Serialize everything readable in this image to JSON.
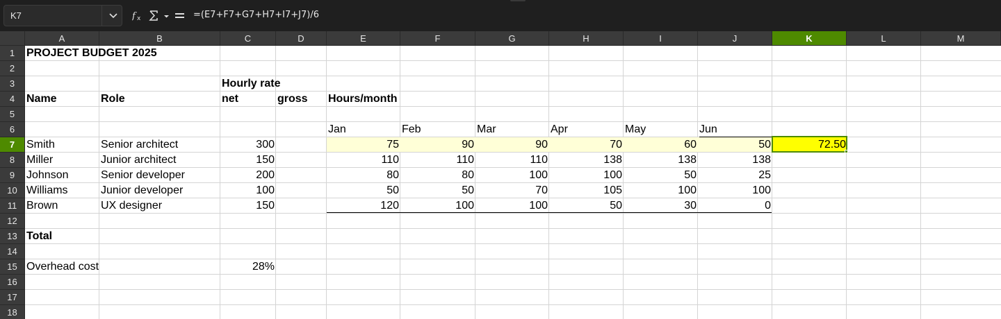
{
  "name_box": {
    "value": "K7"
  },
  "formula": {
    "value": "=(E7+F7+G7+H7+I7+J7)/6"
  },
  "columns": [
    {
      "letter": "A",
      "active": false
    },
    {
      "letter": "B",
      "active": false
    },
    {
      "letter": "C",
      "active": false
    },
    {
      "letter": "D",
      "active": false
    },
    {
      "letter": "E",
      "active": false
    },
    {
      "letter": "F",
      "active": false
    },
    {
      "letter": "G",
      "active": false
    },
    {
      "letter": "H",
      "active": false
    },
    {
      "letter": "I",
      "active": false
    },
    {
      "letter": "J",
      "active": false
    },
    {
      "letter": "K",
      "active": true
    },
    {
      "letter": "L",
      "active": false
    },
    {
      "letter": "M",
      "active": false
    }
  ],
  "rows": [
    "1",
    "2",
    "3",
    "4",
    "5",
    "6",
    "7",
    "8",
    "9",
    "10",
    "11",
    "12",
    "13",
    "14",
    "15",
    "16",
    "17",
    "18"
  ],
  "active_row": "7",
  "sheet": {
    "title": "PROJECT BUDGET 2025",
    "hourly_rate_label": "Hourly rate",
    "headers": {
      "name": "Name",
      "role": "Role",
      "net": "net",
      "gross": "gross",
      "hours": "Hours/month"
    },
    "months": [
      "Jan",
      "Feb",
      "Mar",
      "Apr",
      "May",
      "Jun"
    ],
    "people": [
      {
        "name": "Smith",
        "role": "Senior architect",
        "net": "300",
        "hours": [
          "75",
          "90",
          "90",
          "70",
          "60",
          "50"
        ],
        "avg": "72.50"
      },
      {
        "name": "Miller",
        "role": "Junior architect",
        "net": "150",
        "hours": [
          "110",
          "110",
          "110",
          "138",
          "138",
          "138"
        ]
      },
      {
        "name": "Johnson",
        "role": "Senior developer",
        "net": "200",
        "hours": [
          "80",
          "80",
          "100",
          "100",
          "50",
          "25"
        ]
      },
      {
        "name": "Williams",
        "role": "Junior developer",
        "net": "100",
        "hours": [
          "50",
          "50",
          "70",
          "105",
          "100",
          "100"
        ]
      },
      {
        "name": "Brown",
        "role": "UX designer",
        "net": "150",
        "hours": [
          "120",
          "100",
          "100",
          "50",
          "30",
          "0"
        ]
      }
    ],
    "total_label": "Total",
    "overhead_label": "Overhead cost",
    "overhead_value": "28%"
  },
  "colors": {
    "active_header": "#4e8a00",
    "selection_fill": "#ffff00",
    "row_highlight": "#ffffd7"
  }
}
